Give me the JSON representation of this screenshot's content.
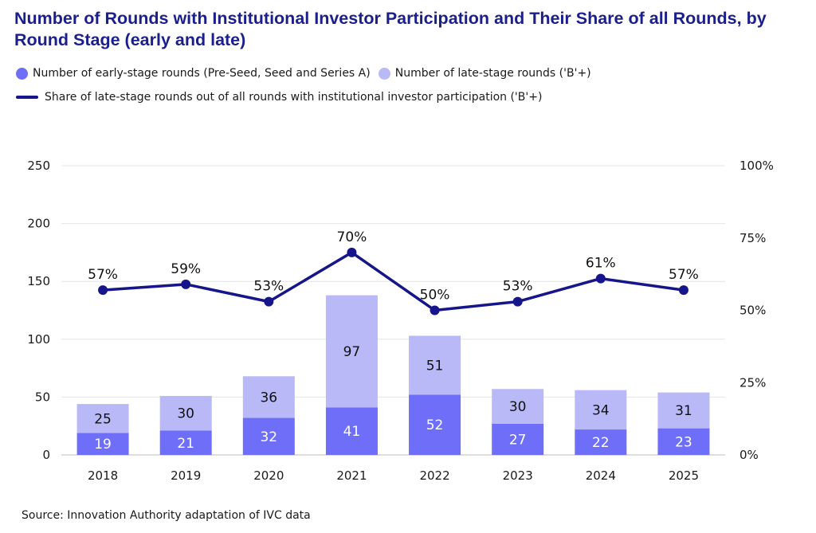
{
  "title": "Number of Rounds with Institutional Investor Participation and Their Share of all Rounds, by Round Stage (early and late)",
  "source": "Source: Innovation Authority adaptation of IVC data",
  "colors": {
    "title": "#1b1f8c",
    "early": "#6e6ef8",
    "late": "#b9b9f7",
    "line": "#16168a"
  },
  "legend": {
    "early": "Number of early-stage rounds (Pre-Seed, Seed and Series A)",
    "late": "Number of late-stage rounds ('B'+)",
    "share": "Share of late-stage rounds out of all rounds with institutional investor participation ('B'+)"
  },
  "chart_data": {
    "type": "bar",
    "stacked": true,
    "categories": [
      "2018",
      "2019",
      "2020",
      "2021",
      "2022",
      "2023",
      "2024",
      "2025"
    ],
    "series": [
      {
        "name": "Number of early-stage rounds (Pre-Seed, Seed and Series A)",
        "values": [
          19,
          21,
          32,
          41,
          52,
          27,
          22,
          23
        ],
        "axis": "left"
      },
      {
        "name": "Number of late-stage rounds ('B'+)",
        "values": [
          25,
          30,
          36,
          97,
          51,
          30,
          34,
          31
        ],
        "axis": "left"
      },
      {
        "name": "Share of late-stage rounds out of all rounds with institutional investor participation ('B'+)",
        "type": "line",
        "values": [
          57,
          59,
          53,
          70,
          50,
          53,
          61,
          57
        ],
        "axis": "right",
        "labels": [
          "57%",
          "59%",
          "53%",
          "70%",
          "50%",
          "53%",
          "61%",
          "57%"
        ]
      }
    ],
    "ylim": [
      0,
      250
    ],
    "y_ticks": [
      "0",
      "50",
      "100",
      "150",
      "200",
      "250"
    ],
    "y2lim": [
      0,
      100
    ],
    "y2_ticks": [
      "0%",
      "25%",
      "50%",
      "75%",
      "100%"
    ],
    "grid": true,
    "legend_position": "top"
  }
}
